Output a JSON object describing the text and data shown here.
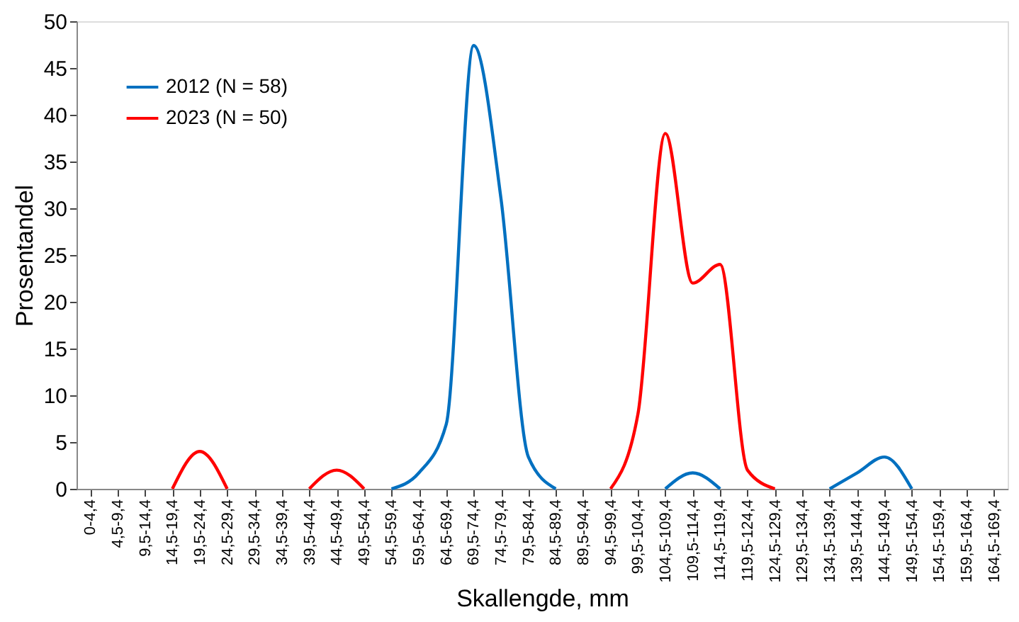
{
  "chart_data": {
    "type": "line",
    "xlabel": "Skallengde, mm",
    "ylabel": "Prosentandel",
    "categories": [
      "0-4,4",
      "4,5-9,4",
      "9,5-14,4",
      "14,5-19,4",
      "19,5-24,4",
      "24,5-29,4",
      "29,5-34,4",
      "34,5-39,4",
      "39,5-44,4",
      "44,5-49,4",
      "49,5-54,4",
      "54,5-59,4",
      "59,5-64,4",
      "64,5-69,4",
      "69,5-74,4",
      "74,5-79,4",
      "79,5-84,4",
      "84,5-89,4",
      "89,5-94,4",
      "94,5-99,4",
      "99,5-104,4",
      "104,5-109,4",
      "109,5-114,4",
      "114,5-119,4",
      "119,5-124,4",
      "124,5-129,4",
      "129,5-134,4",
      "134,5-139,4",
      "139,5-144,4",
      "144,5-149,4",
      "149,5-154,4",
      "154,5-159,4",
      "159,5-164,4",
      "164,5-169,4"
    ],
    "series": [
      {
        "name": "2012 (N = 58)",
        "color": "#0070c0",
        "values": [
          null,
          null,
          null,
          null,
          null,
          null,
          null,
          null,
          null,
          null,
          null,
          0,
          1.7,
          6.9,
          47.4,
          31,
          3.4,
          0,
          null,
          null,
          null,
          0,
          1.7,
          0,
          null,
          null,
          null,
          0,
          1.7,
          3.4,
          0,
          null,
          null,
          null
        ]
      },
      {
        "name": "2023 (N = 50)",
        "color": "#ff0000",
        "values": [
          null,
          null,
          null,
          0,
          4,
          0,
          null,
          null,
          0,
          2,
          0,
          null,
          null,
          null,
          null,
          null,
          null,
          null,
          null,
          0,
          8,
          38,
          22,
          24,
          2,
          0,
          null,
          null,
          null,
          null,
          null,
          null,
          null,
          null
        ]
      }
    ],
    "ylim": [
      0,
      50
    ],
    "yticks": [
      0,
      5,
      10,
      15,
      20,
      25,
      30,
      35,
      40,
      45,
      50
    ],
    "grid": false,
    "legend": "top left",
    "line_style": "solid",
    "marker": "none"
  }
}
